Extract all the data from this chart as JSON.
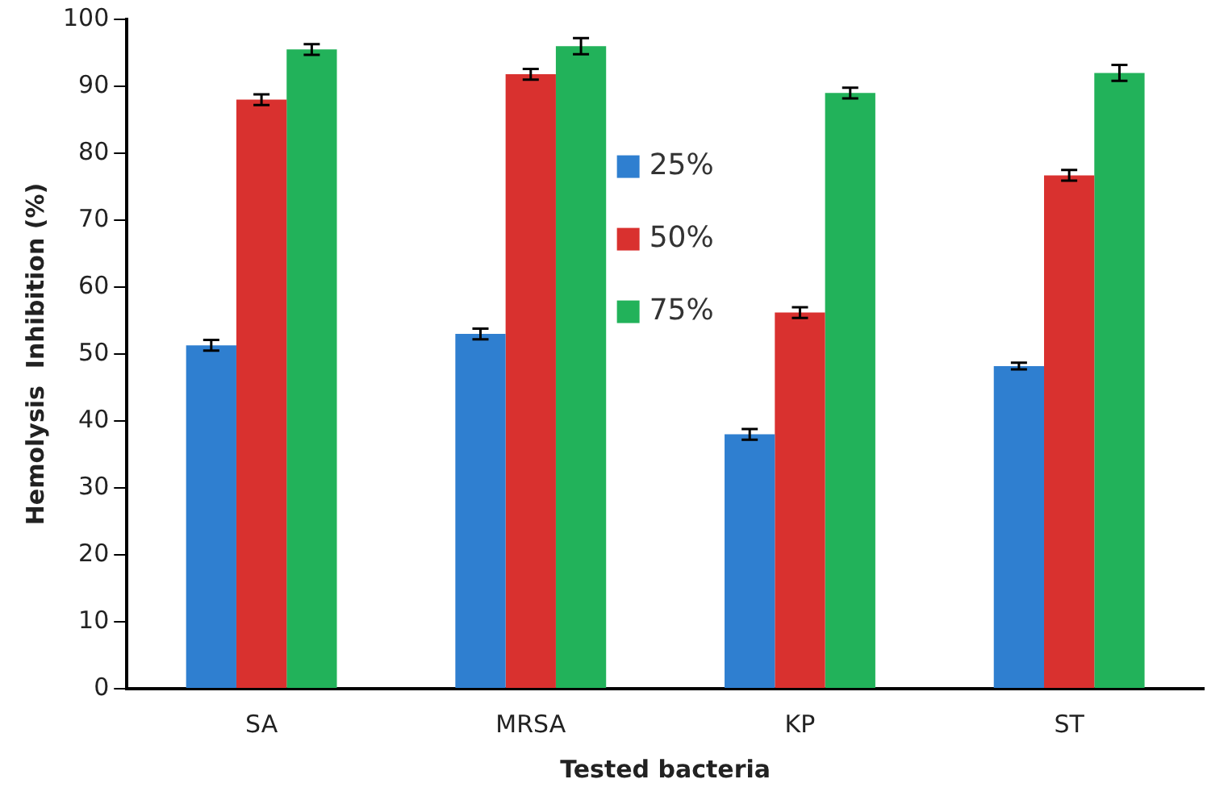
{
  "chart_data": {
    "type": "bar",
    "xlabel": "Tested bacteria",
    "ylabel": "Hemolysis  Inhibition (%)",
    "categories": [
      "SA",
      "MRSA",
      "KP",
      "ST"
    ],
    "series": [
      {
        "name": "25%",
        "color": "#2f7fd0",
        "values": [
          51.3,
          53,
          38,
          48.2
        ],
        "errors": [
          0.8,
          0.8,
          0.8,
          0.5
        ]
      },
      {
        "name": "50%",
        "color": "#d9312f",
        "values": [
          88,
          91.8,
          56.2,
          76.7
        ],
        "errors": [
          0.8,
          0.8,
          0.8,
          0.8
        ]
      },
      {
        "name": "75%",
        "color": "#22b25a",
        "values": [
          95.5,
          96,
          89,
          92
        ],
        "errors": [
          0.8,
          1.2,
          0.8,
          1.2
        ]
      }
    ],
    "ylim": [
      0,
      100
    ],
    "yticks": [
      0,
      10,
      20,
      30,
      40,
      50,
      60,
      70,
      80,
      90,
      100
    ],
    "grid": false,
    "legend": "top"
  }
}
